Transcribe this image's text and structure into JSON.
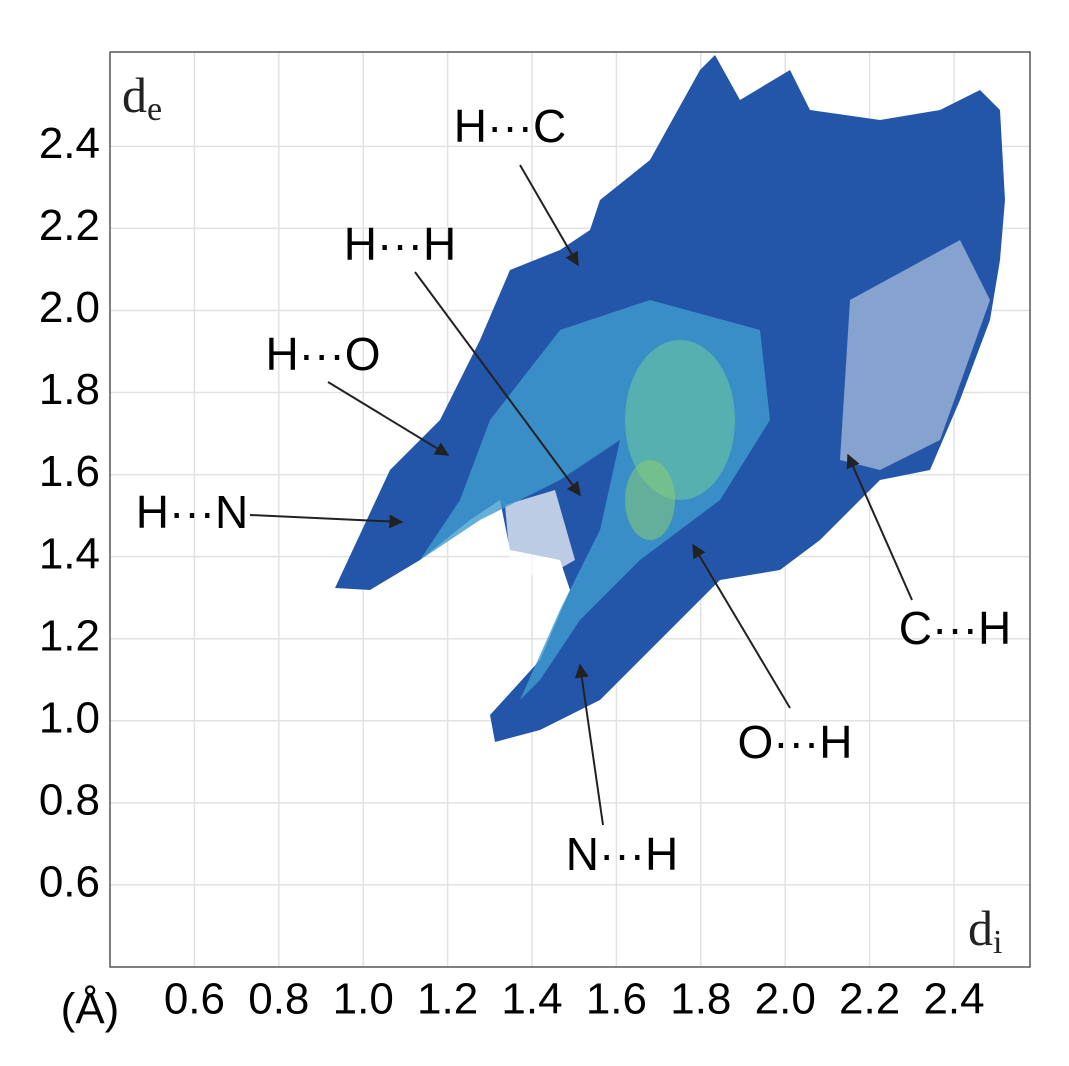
{
  "chart_data": {
    "type": "fingerprint",
    "xlabel": "d",
    "xlabel_subscript": "i",
    "ylabel": "d",
    "ylabel_subscript": "e",
    "unit": "(Å)",
    "xlim": [
      0.4,
      2.58
    ],
    "ylim": [
      0.4,
      2.63
    ],
    "xticks": [
      0.6,
      0.8,
      {
        "value": 1,
        "label": "1.0"
      },
      1.2,
      1.4,
      1.6,
      1.8,
      {
        "value": 2,
        "label": "2.0"
      },
      2.2,
      2.4
    ],
    "yticks": [
      0.6,
      0.8,
      {
        "value": 1,
        "label": "1.0"
      },
      1.2,
      1.4,
      1.6,
      1.8,
      {
        "value": 2,
        "label": "2.0"
      },
      2.2,
      2.4
    ],
    "grid": true,
    "annotations": [
      "H···C",
      "H···H",
      "H···O",
      "H···N",
      "C···H",
      "O···H",
      "N···H"
    ]
  }
}
